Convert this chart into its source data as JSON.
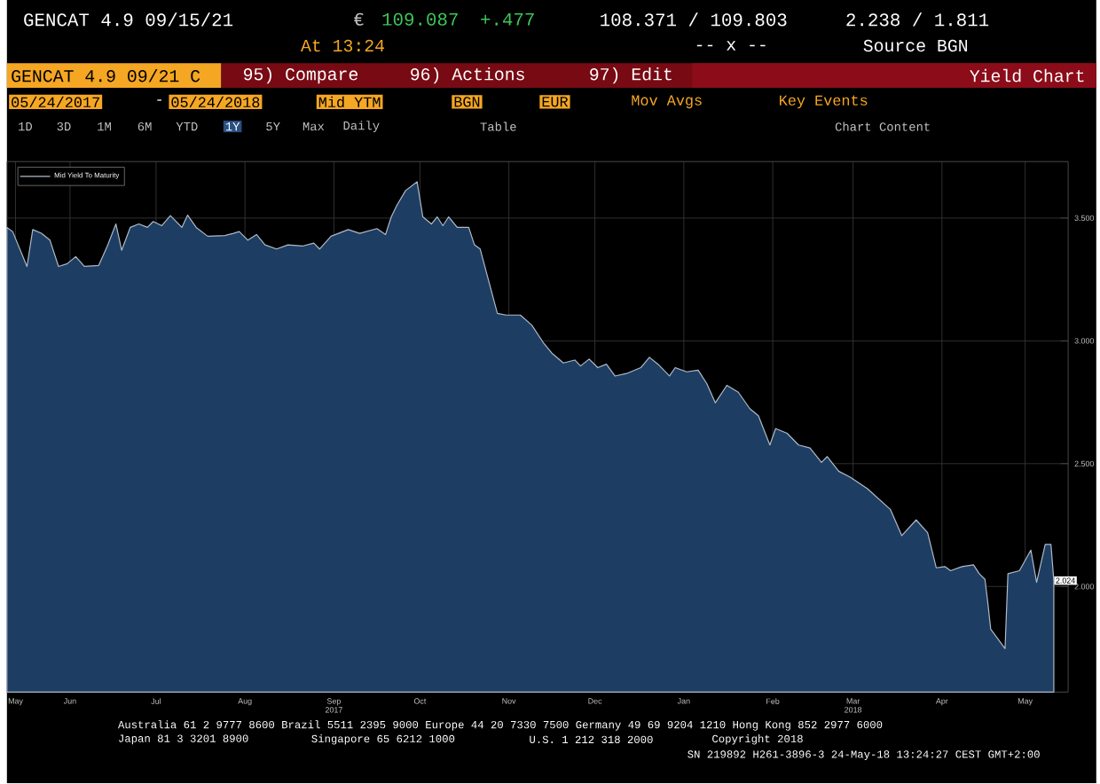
{
  "chart_data": {
    "type": "area",
    "title": "Yield Chart",
    "annotations": [
      "GENCAT 4.9 09/15/21",
      "€",
      "109.087",
      "+.477",
      "108.371 / 109.803",
      "2.238 / 1.811",
      "At 13:24",
      "-- x --",
      "Source BGN",
      "GENCAT 4.9 09/21 C",
      "95) Compare",
      "96) Actions",
      "97) Edit",
      "05/24/2017",
      "-",
      "05/24/2018",
      "Mid YTM",
      "BGN",
      "EUR",
      "Mov Avgs",
      "Key Events",
      "1D",
      "3D",
      "1M",
      "6M",
      "YTD",
      "1Y",
      "5Y",
      "Max",
      "Daily",
      "Table",
      "Chart Content",
      "Australia 61 2 9777 8600 Brazil 5511 2395 9000 Europe 44 20 7330 7500 Germany 49 69 9204 1210 Hong Kong 852 2977 6000",
      "Japan 81 3 3201 8900",
      "Singapore 65 6212 1000",
      "U.S. 1 212 318 2000",
      "Copyright 2018",
      "SN 219892 H261-3896-3 24-May-18 13:24:27 CEST GMT+2:00",
      {
        "text": "2.024",
        "x": "2018-05-24",
        "y": 2.024
      }
    ],
    "x": [
      "2017-05-24",
      "2017-05-26",
      "2017-05-31",
      "2017-06-02",
      "2017-06-05",
      "2017-06-08",
      "2017-06-11",
      "2017-06-14",
      "2017-06-17",
      "2017-06-20",
      "2017-06-25",
      "2017-06-28",
      "2017-07-01",
      "2017-07-03",
      "2017-07-06",
      "2017-07-09",
      "2017-07-12",
      "2017-07-14",
      "2017-07-17",
      "2017-07-20",
      "2017-07-24",
      "2017-07-26",
      "2017-07-29",
      "2017-08-02",
      "2017-08-08",
      "2017-08-11",
      "2017-08-13",
      "2017-08-16",
      "2017-08-19",
      "2017-08-22",
      "2017-08-26",
      "2017-08-30",
      "2017-09-04",
      "2017-09-08",
      "2017-09-10",
      "2017-09-14",
      "2017-09-20",
      "2017-09-24",
      "2017-09-30",
      "2017-10-03",
      "2017-10-05",
      "2017-10-07",
      "2017-10-10",
      "2017-10-14",
      "2017-10-16",
      "2017-10-19",
      "2017-10-21",
      "2017-10-23",
      "2017-10-25",
      "2017-10-28",
      "2017-11-01",
      "2017-11-03",
      "2017-11-05",
      "2017-11-08",
      "2017-11-11",
      "2017-11-14",
      "2017-11-19",
      "2017-11-23",
      "2017-11-27",
      "2017-11-30",
      "2017-12-04",
      "2017-12-08",
      "2017-12-10",
      "2017-12-13",
      "2017-12-16",
      "2017-12-19",
      "2017-12-22",
      "2017-12-26",
      "2017-12-31",
      "2018-01-03",
      "2018-01-06",
      "2018-01-10",
      "2018-01-12",
      "2018-01-16",
      "2018-01-20",
      "2018-01-23",
      "2018-01-26",
      "2018-01-30",
      "2018-02-03",
      "2018-02-07",
      "2018-02-10",
      "2018-02-14",
      "2018-02-16",
      "2018-02-20",
      "2018-02-24",
      "2018-02-28",
      "2018-03-04",
      "2018-03-06",
      "2018-03-10",
      "2018-03-14",
      "2018-03-20",
      "2018-03-28",
      "2018-04-01",
      "2018-04-06",
      "2018-04-10",
      "2018-04-13",
      "2018-04-16",
      "2018-04-18",
      "2018-04-22",
      "2018-04-26",
      "2018-04-28",
      "2018-04-30",
      "2018-05-01",
      "2018-05-02",
      "2018-05-07",
      "2018-05-08",
      "2018-05-12",
      "2018-05-16",
      "2018-05-18",
      "2018-05-21",
      "2018-05-23",
      "2018-05-24"
    ],
    "series": [
      {
        "name": "Mid Yield To Maturity",
        "color": "#1e3d63",
        "values": [
          3.462,
          3.445,
          3.303,
          3.453,
          3.438,
          3.41,
          3.303,
          3.314,
          3.343,
          3.303,
          3.307,
          3.386,
          3.476,
          3.369,
          3.462,
          3.476,
          3.462,
          3.486,
          3.469,
          3.51,
          3.462,
          3.512,
          3.462,
          3.426,
          3.429,
          3.438,
          3.445,
          3.41,
          3.433,
          3.391,
          3.374,
          3.391,
          3.386,
          3.398,
          3.374,
          3.426,
          3.453,
          3.438,
          3.457,
          3.433,
          3.505,
          3.553,
          3.612,
          3.648,
          3.505,
          3.476,
          3.505,
          3.469,
          3.505,
          3.462,
          3.462,
          3.391,
          3.374,
          3.243,
          3.112,
          3.105,
          3.105,
          3.064,
          2.993,
          2.95,
          2.91,
          2.922,
          2.898,
          2.926,
          2.891,
          2.905,
          2.857,
          2.867,
          2.891,
          2.933,
          2.905,
          2.857,
          2.891,
          2.874,
          2.881,
          2.826,
          2.748,
          2.819,
          2.791,
          2.724,
          2.695,
          2.576,
          2.643,
          2.624,
          2.576,
          2.564,
          2.505,
          2.529,
          2.469,
          2.445,
          2.398,
          2.314,
          2.207,
          2.271,
          2.219,
          2.076,
          2.081,
          2.064,
          2.081,
          2.088,
          2.052,
          2.029,
          1.933,
          1.826,
          1.747,
          2.052,
          2.064,
          2.148,
          2.017,
          2.171,
          2.171,
          2.024
        ]
      }
    ],
    "xlim": [
      "2017-05-24",
      "2018-05-29"
    ],
    "ylim": [
      1.57,
      3.73
    ],
    "xticks": [
      {
        "value": "2017-05-27",
        "label": "May"
      },
      {
        "value": "2017-06-15",
        "label": "Jun"
      },
      {
        "value": "2017-07-15",
        "label": "Jul"
      },
      {
        "value": "2017-08-15",
        "label": "Aug"
      },
      {
        "value": "2017-09-15",
        "label": "Sep 2017"
      },
      {
        "value": "2017-10-15",
        "label": "Oct"
      },
      {
        "value": "2017-11-15",
        "label": "Nov"
      },
      {
        "value": "2017-12-15",
        "label": "Dec"
      },
      {
        "value": "2018-01-15",
        "label": "Jan"
      },
      {
        "value": "2018-02-15",
        "label": "Feb"
      },
      {
        "value": "2018-03-15",
        "label": "Mar 2018"
      },
      {
        "value": "2018-04-15",
        "label": "Apr"
      },
      {
        "value": "2018-05-14",
        "label": "May"
      }
    ],
    "yticks": [
      {
        "value": 2,
        "label": "2.000"
      },
      {
        "value": 2.5,
        "label": "2.500"
      },
      {
        "value": 3,
        "label": "3.000"
      },
      {
        "value": 3.5,
        "label": "3.500"
      }
    ],
    "grid": true,
    "legend": "top left"
  }
}
